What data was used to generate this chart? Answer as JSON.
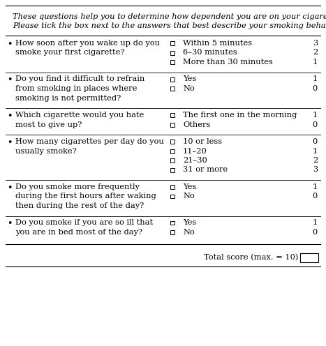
{
  "intro_line1": "These questions help you to determine how dependent you are on your cigarettes.",
  "intro_line2": "Please tick the box next to the answers that best describe your smoking behavior.",
  "questions": [
    {
      "question_lines": [
        "How soon after you wake up do you",
        "smoke your first cigarette?"
      ],
      "answers": [
        "Within 5 minutes",
        "6–30 minutes",
        "More than 30 minutes"
      ],
      "scores": [
        "3",
        "2",
        "1"
      ]
    },
    {
      "question_lines": [
        "Do you find it difficult to refrain",
        "from smoking in places where",
        "smoking is not permitted?"
      ],
      "answers": [
        "Yes",
        "No"
      ],
      "scores": [
        "1",
        "0"
      ]
    },
    {
      "question_lines": [
        "Which cigarette would you hate",
        "most to give up?"
      ],
      "answers": [
        "The first one in the morning",
        "Others"
      ],
      "scores": [
        "1",
        "0"
      ]
    },
    {
      "question_lines": [
        "How many cigarettes per day do you",
        "usually smoke?"
      ],
      "answers": [
        "10 or less",
        "11–20",
        "21–30",
        "31 or more"
      ],
      "scores": [
        "0",
        "1",
        "2",
        "3"
      ]
    },
    {
      "question_lines": [
        "Do you smoke more frequently",
        "during the first hours after waking",
        "then during the rest of the day?"
      ],
      "answers": [
        "Yes",
        "No"
      ],
      "scores": [
        "1",
        "0"
      ]
    },
    {
      "question_lines": [
        "Do you smoke if you are so ill that",
        "you are in bed most of the day?"
      ],
      "answers": [
        "Yes",
        "No"
      ],
      "scores": [
        "1",
        "0"
      ]
    }
  ],
  "total_label": "Total score (max. = 10)",
  "bg_color": "#ffffff",
  "text_color": "#000000",
  "line_color": "#000000",
  "font_size": 8.2,
  "intro_font_size": 8.2
}
